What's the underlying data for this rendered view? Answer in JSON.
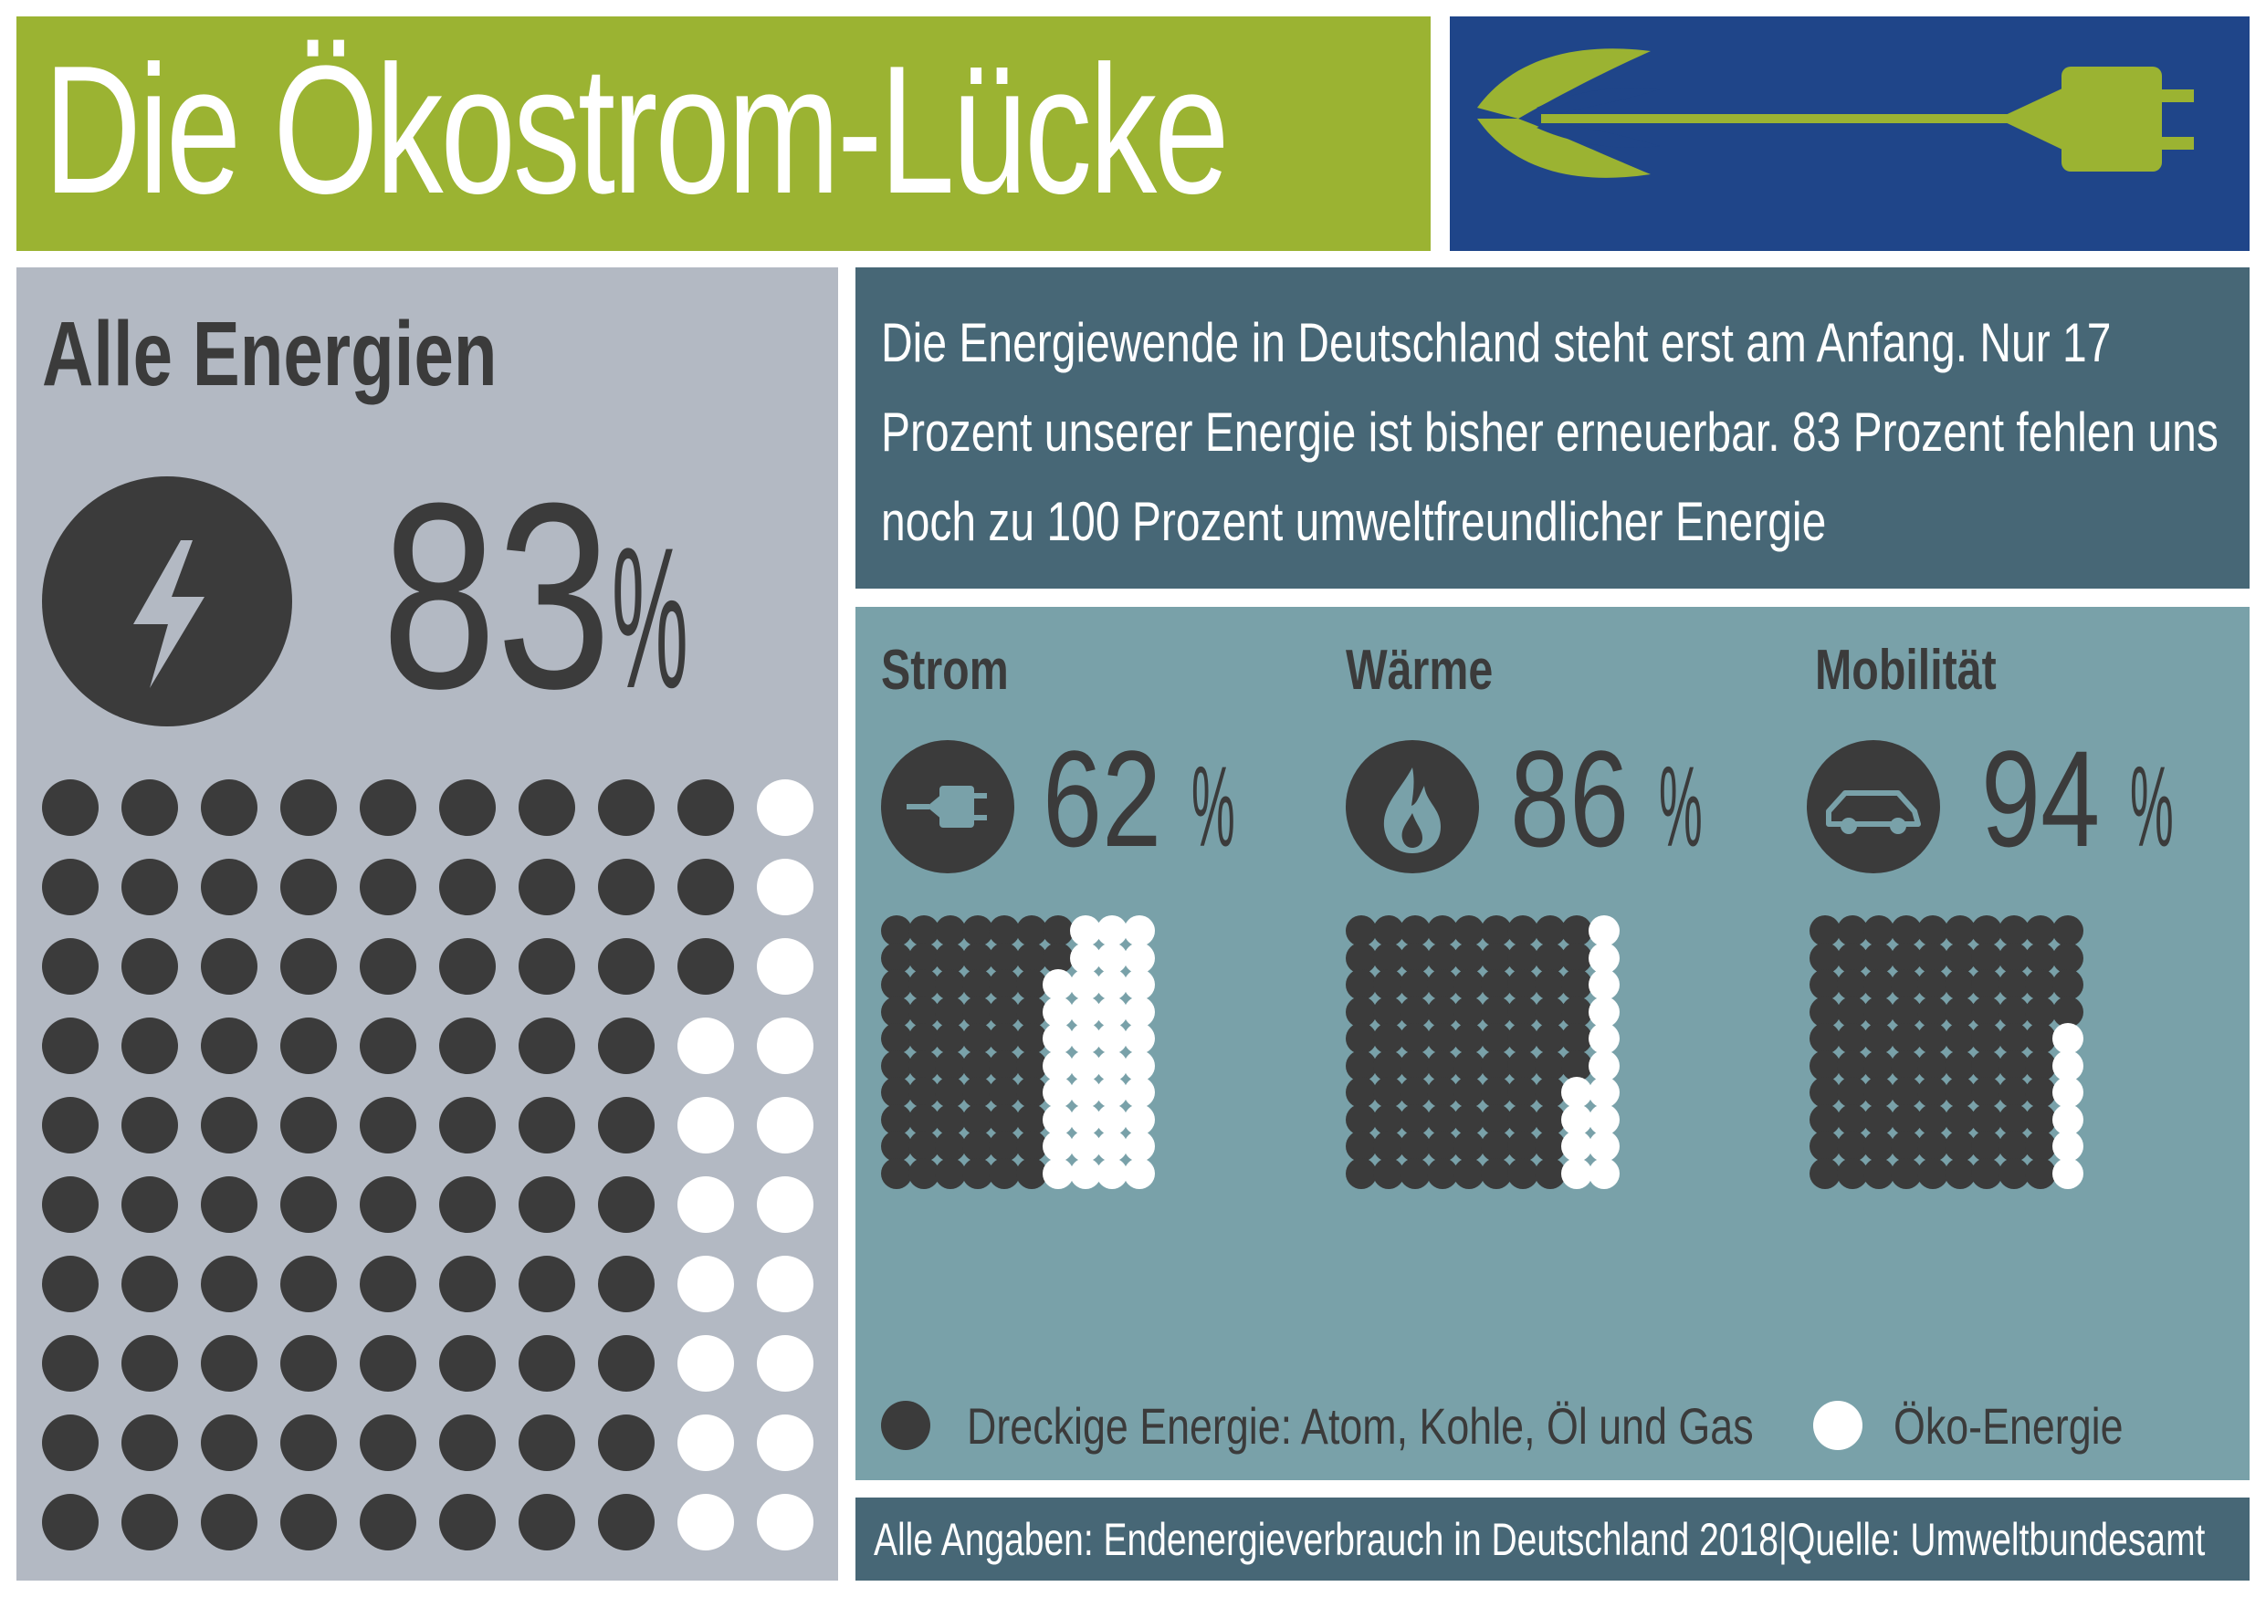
{
  "title": "Die Ökostrom-Lücke",
  "intro": "Die Energiewende in Deutschland steht erst am Anfang. Nur 17 Prozent unserer Energie ist bisher erneuerbar. 83 Prozent fehlen uns noch zu 100 Prozent umweltfreundlicher Energie",
  "source": "Alle Angaben: Endenergieverbrauch in Deutschland 2018|Quelle: Umweltbundesamt",
  "colors": {
    "title_bg": "#9bb332",
    "logo_bg": "#1f4589",
    "left_bg": "#b3b9c3",
    "intro_bg": "#476776",
    "sectors_bg": "#79a1a9",
    "dirty": "#3b3b3b",
    "eco": "#ffffff"
  },
  "icons": {
    "logo": "plug-leaf-icon",
    "all": "lightning-bolt-icon",
    "strom": "plug-icon",
    "waerme": "flame-icon",
    "mobilitaet": "car-icon"
  },
  "legend": {
    "dirty": "Dreckige Energie: Atom, Kohle, Öl und Gas",
    "eco": "Öko-Energie"
  },
  "chart_data": [
    {
      "type": "waffle",
      "title": "Alle Energien",
      "value_label": "83",
      "unit": "%",
      "series": [
        {
          "name": "Dreckige Energie: Atom, Kohle, Öl und Gas",
          "value": 83
        },
        {
          "name": "Öko-Energie",
          "value": 17
        }
      ],
      "grid": [
        10,
        10
      ]
    },
    {
      "type": "waffle",
      "title": "Strom",
      "value_label": "62",
      "unit": "%",
      "series": [
        {
          "name": "Dreckige Energie: Atom, Kohle, Öl und Gas",
          "value": 62
        },
        {
          "name": "Öko-Energie",
          "value": 38
        }
      ],
      "grid": [
        10,
        10
      ]
    },
    {
      "type": "waffle",
      "title": "Wärme",
      "value_label": "86",
      "unit": "%",
      "series": [
        {
          "name": "Dreckige Energie: Atom, Kohle, Öl und Gas",
          "value": 86
        },
        {
          "name": "Öko-Energie",
          "value": 14
        }
      ],
      "grid": [
        10,
        10
      ]
    },
    {
      "type": "waffle",
      "title": "Mobilität",
      "value_label": "94",
      "unit": "%",
      "series": [
        {
          "name": "Dreckige Energie: Atom, Kohle, Öl und Gas",
          "value": 94
        },
        {
          "name": "Öko-Energie",
          "value": 6
        }
      ],
      "grid": [
        10,
        10
      ]
    }
  ]
}
